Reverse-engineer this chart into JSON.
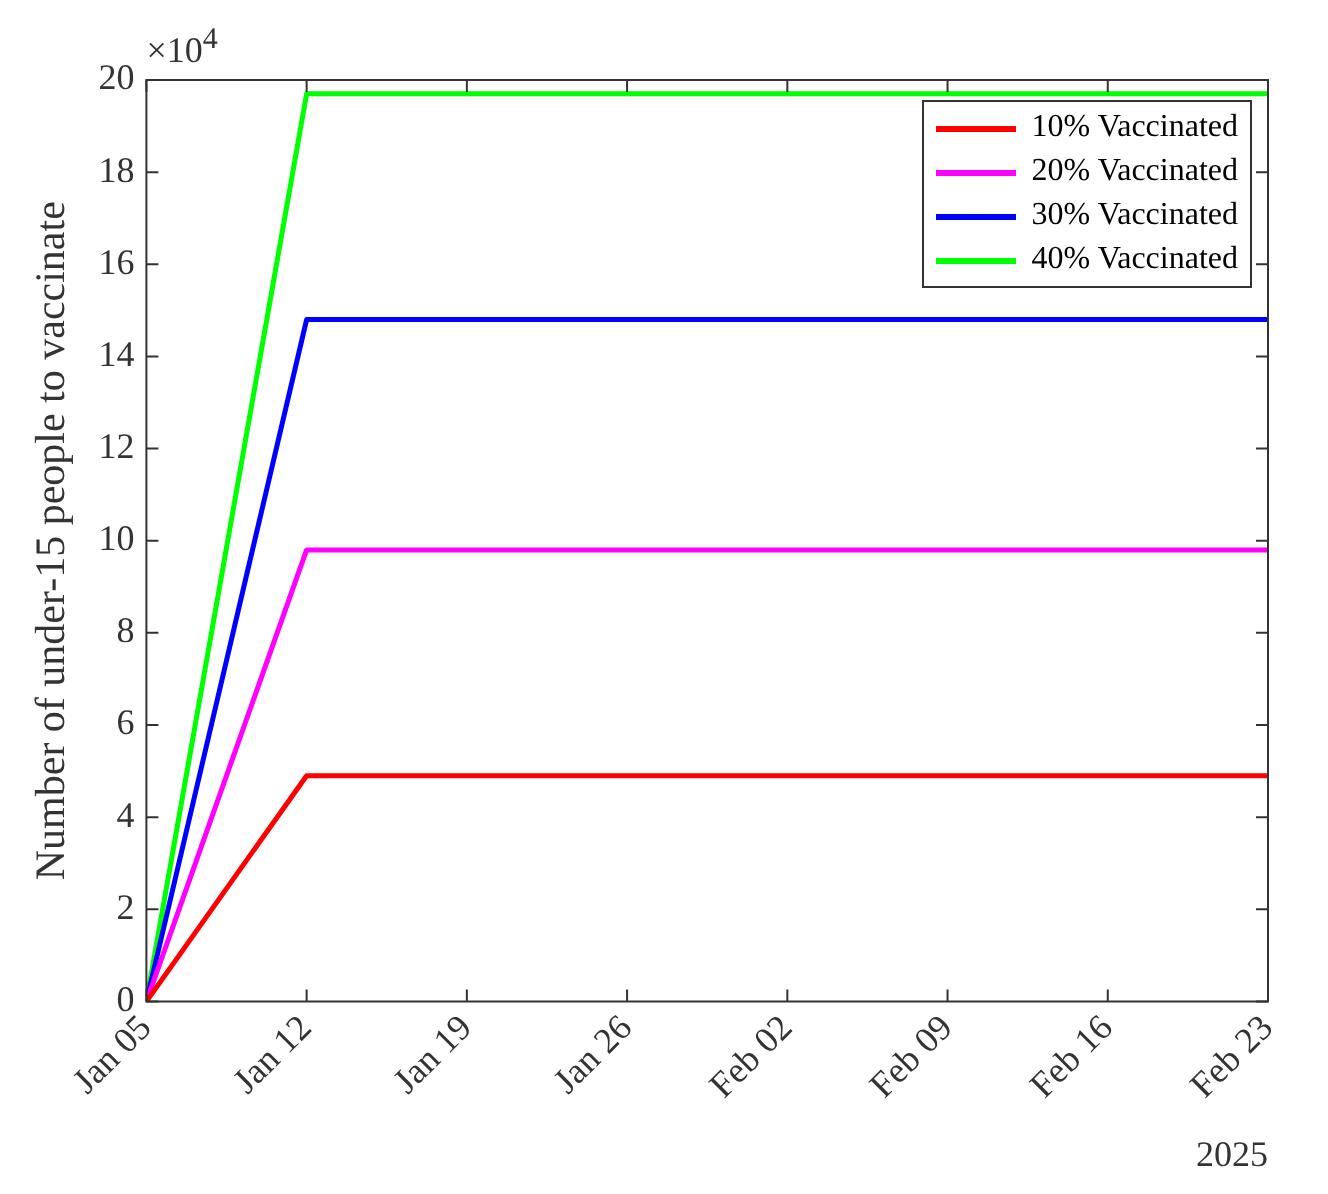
{
  "chart_data": {
    "type": "line",
    "ylabel": "Number of under-15 people to vaccinate",
    "x": [
      "2025-01-05",
      "2025-01-12",
      "2025-02-23"
    ],
    "series": [
      {
        "name": "10% Vaccinated",
        "color": "#ff0000",
        "values": [
          0,
          4.9,
          4.9
        ]
      },
      {
        "name": "20% Vaccinated",
        "color": "#ff00ff",
        "values": [
          0,
          9.8,
          9.8
        ]
      },
      {
        "name": "30% Vaccinated",
        "color": "#0000ff",
        "values": [
          0,
          14.8,
          14.8
        ]
      },
      {
        "name": "40% Vaccinated",
        "color": "#00ff00",
        "values": [
          0,
          19.7,
          19.7
        ]
      }
    ],
    "xlim": [
      "2025-01-05",
      "2025-02-23"
    ],
    "xticks": [
      {
        "value": "2025-01-05",
        "label": "Jan 05"
      },
      {
        "value": "2025-01-12",
        "label": "Jan 12"
      },
      {
        "value": "2025-01-19",
        "label": "Jan 19"
      },
      {
        "value": "2025-01-26",
        "label": "Jan 26"
      },
      {
        "value": "2025-02-02",
        "label": "Feb 02"
      },
      {
        "value": "2025-02-09",
        "label": "Feb 09"
      },
      {
        "value": "2025-02-16",
        "label": "Feb 16"
      },
      {
        "value": "2025-02-23",
        "label": "Feb 23"
      }
    ],
    "ylim": [
      0,
      20
    ],
    "yticks": [
      0,
      2,
      4,
      6,
      8,
      10,
      12,
      14,
      16,
      18,
      20
    ],
    "annotations": [
      "×10$^{4}$",
      "2025"
    ],
    "grid": false,
    "legend": "top right",
    "marker": "none",
    "line_style": "solid"
  }
}
